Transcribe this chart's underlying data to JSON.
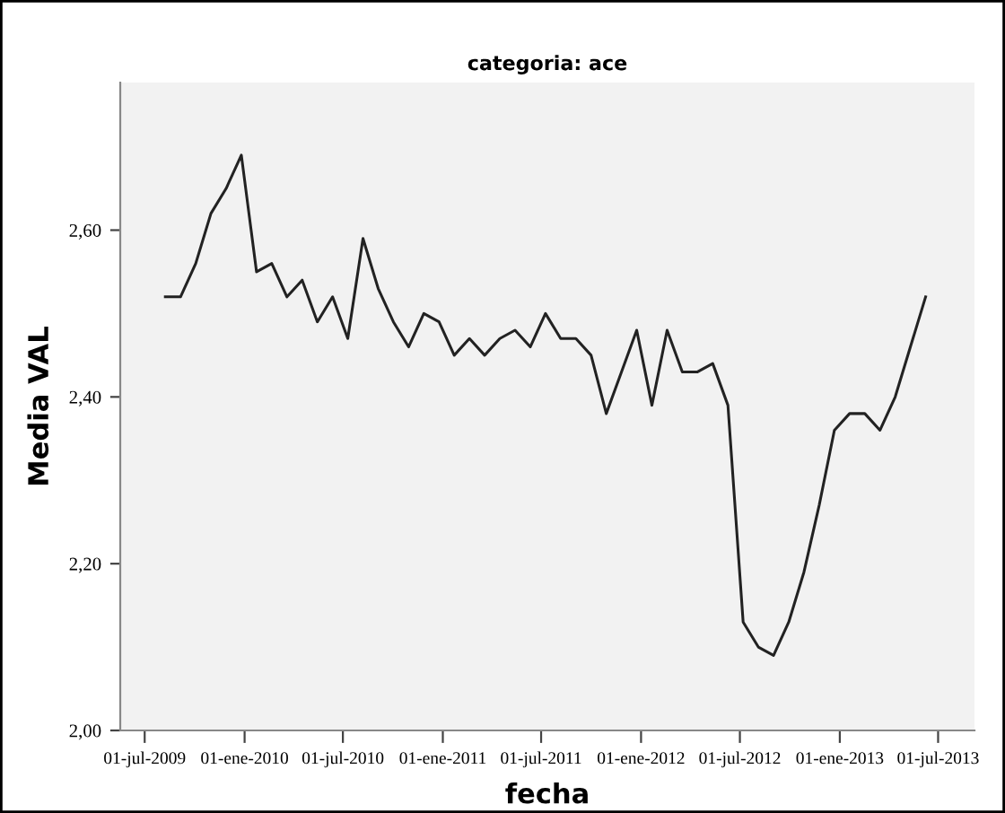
{
  "chart_data": {
    "type": "line",
    "title": "categoria: ace",
    "xlabel": "fecha",
    "ylabel": "Media VAL",
    "x": [
      "2009-08-08",
      "2009-09-05",
      "2009-10-03",
      "2009-10-31",
      "2009-11-28",
      "2009-12-26",
      "2010-01-23",
      "2010-02-20",
      "2010-03-20",
      "2010-04-17",
      "2010-05-15",
      "2010-06-12",
      "2010-07-10",
      "2010-08-07",
      "2010-09-04",
      "2010-10-02",
      "2010-10-30",
      "2010-11-27",
      "2010-12-25",
      "2011-01-22",
      "2011-02-19",
      "2011-03-19",
      "2011-04-16",
      "2011-05-14",
      "2011-06-11",
      "2011-07-09",
      "2011-08-06",
      "2011-09-03",
      "2011-10-01",
      "2011-10-29",
      "2011-11-26",
      "2011-12-24",
      "2012-01-21",
      "2012-02-18",
      "2012-03-17",
      "2012-04-14",
      "2012-05-12",
      "2012-06-09",
      "2012-07-07",
      "2012-08-04",
      "2012-09-01",
      "2012-09-29",
      "2012-10-27",
      "2012-11-24",
      "2012-12-22",
      "2013-01-19",
      "2013-02-16",
      "2013-03-16",
      "2013-04-13",
      "2013-05-11",
      "2013-06-08"
    ],
    "series": [
      {
        "color": "#222222",
        "values": [
          2.52,
          2.52,
          2.56,
          2.62,
          2.65,
          2.69,
          2.55,
          2.56,
          2.52,
          2.54,
          2.49,
          2.52,
          2.47,
          2.59,
          2.53,
          2.49,
          2.46,
          2.5,
          2.49,
          2.45,
          2.47,
          2.45,
          2.47,
          2.48,
          2.46,
          2.5,
          2.47,
          2.47,
          2.45,
          2.38,
          2.43,
          2.48,
          2.39,
          2.48,
          2.43,
          2.43,
          2.44,
          2.39,
          2.13,
          2.1,
          2.09,
          2.13,
          2.19,
          2.27,
          2.36,
          2.38,
          2.38,
          2.36,
          2.4,
          2.46,
          2.52
        ]
      }
    ],
    "xlim": [
      "2009-05-17",
      "2013-09-06"
    ],
    "xticks": [
      {
        "value": "2009-07-01",
        "label": "01-jul-2009"
      },
      {
        "value": "2010-01-01",
        "label": "01-ene-2010"
      },
      {
        "value": "2010-07-01",
        "label": "01-jul-2010"
      },
      {
        "value": "2011-01-01",
        "label": "01-ene-2011"
      },
      {
        "value": "2011-07-01",
        "label": "01-jul-2011"
      },
      {
        "value": "2012-01-01",
        "label": "01-ene-2012"
      },
      {
        "value": "2012-07-01",
        "label": "01-jul-2012"
      },
      {
        "value": "2013-01-01",
        "label": "01-ene-2013"
      },
      {
        "value": "2013-07-01",
        "label": "01-jul-2013"
      }
    ],
    "ylim": [
      2.0,
      2.777
    ],
    "yticks": [
      {
        "value": 2.0,
        "label": "2,00"
      },
      {
        "value": 2.2,
        "label": "2,20"
      },
      {
        "value": 2.4,
        "label": "2,40"
      },
      {
        "value": 2.6,
        "label": "2,60"
      }
    ],
    "grid": false,
    "marker": "none",
    "line_style": "solid"
  }
}
